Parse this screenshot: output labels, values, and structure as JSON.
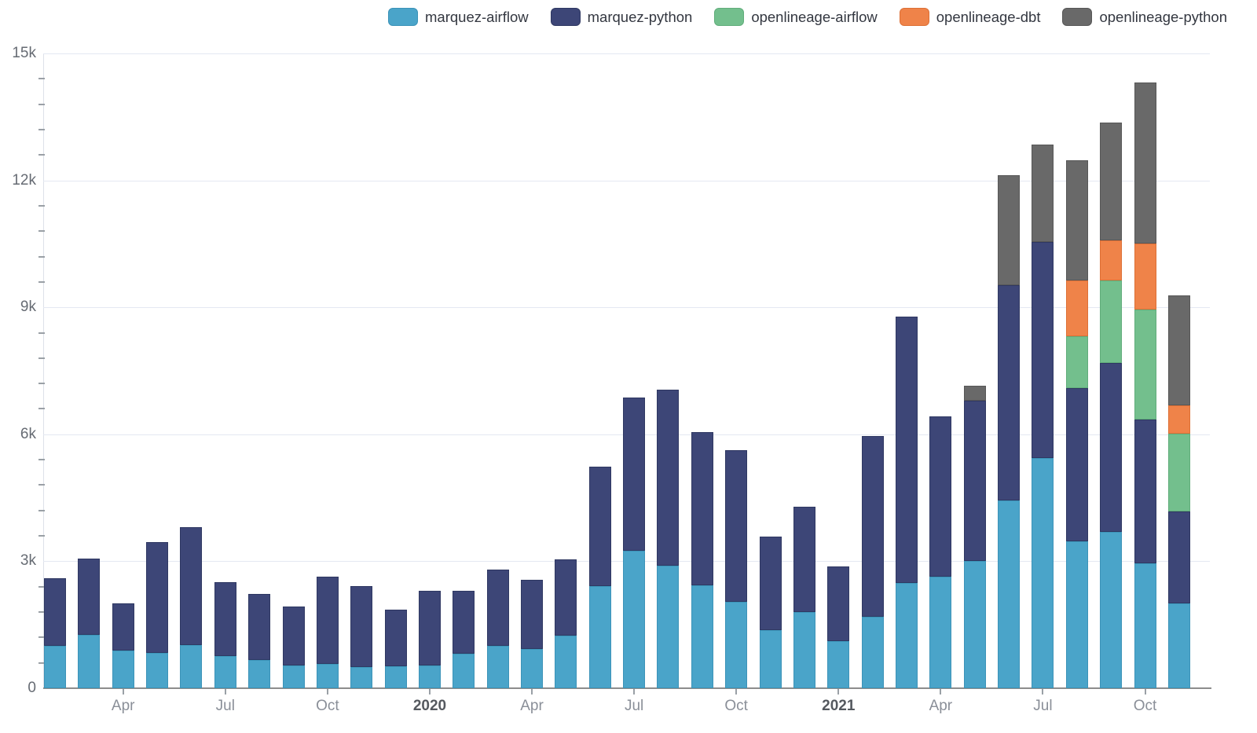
{
  "legend": {
    "items": [
      {
        "label": "marquez-airflow",
        "color": "#4aa4c9",
        "border": "#3c93b8"
      },
      {
        "label": "marquez-python",
        "color": "#3d4677",
        "border": "#2f3862"
      },
      {
        "label": "openlineage-airflow",
        "color": "#73bf8d",
        "border": "#61ad7b"
      },
      {
        "label": "openlineage-dbt",
        "color": "#ef8349",
        "border": "#dd7036"
      },
      {
        "label": "openlineage-python",
        "color": "#696969",
        "border": "#575757"
      }
    ]
  },
  "chart_data": {
    "type": "bar",
    "stacked": true,
    "title": "",
    "xlabel": "",
    "ylabel": "",
    "ylim": [
      0,
      15000
    ],
    "grid": "horizontal",
    "legend_position": "top-right",
    "x": [
      "2019-02",
      "2019-03",
      "2019-04",
      "2019-05",
      "2019-06",
      "2019-07",
      "2019-08",
      "2019-09",
      "2019-10",
      "2019-11",
      "2019-12",
      "2020-01",
      "2020-02",
      "2020-03",
      "2020-04",
      "2020-05",
      "2020-06",
      "2020-07",
      "2020-08",
      "2020-09",
      "2020-10",
      "2020-11",
      "2020-12",
      "2021-01",
      "2021-02",
      "2021-03",
      "2021-04",
      "2021-05",
      "2021-06",
      "2021-07",
      "2021-08",
      "2021-09",
      "2021-10",
      "2021-11"
    ],
    "series": [
      {
        "name": "marquez-airflow",
        "color": "#4aa4c9",
        "border": "#3c93b8",
        "values": [
          1000,
          1270,
          900,
          830,
          1020,
          760,
          660,
          530,
          580,
          510,
          520,
          530,
          810,
          1000,
          930,
          1240,
          2420,
          3240,
          2890,
          2430,
          2040,
          1370,
          1800,
          1110,
          1690,
          2480,
          2630,
          3000,
          4440,
          5440,
          3480,
          3700,
          2960,
          2000
        ]
      },
      {
        "name": "marquez-python",
        "color": "#3d4677",
        "border": "#2f3862",
        "values": [
          1600,
          1800,
          1100,
          2630,
          2780,
          1740,
          1560,
          1410,
          2050,
          1910,
          1340,
          1770,
          1500,
          1800,
          1630,
          1800,
          2810,
          3630,
          4170,
          3630,
          3590,
          2220,
          2480,
          1760,
          4270,
          6300,
          3800,
          3800,
          5080,
          5100,
          3610,
          3980,
          3390,
          2170
        ]
      },
      {
        "name": "openlineage-airflow",
        "color": "#73bf8d",
        "border": "#61ad7b",
        "values": [
          0,
          0,
          0,
          0,
          0,
          0,
          0,
          0,
          0,
          0,
          0,
          0,
          0,
          0,
          0,
          0,
          0,
          0,
          0,
          0,
          0,
          0,
          0,
          0,
          0,
          0,
          0,
          0,
          0,
          0,
          1220,
          1950,
          2590,
          1850
        ]
      },
      {
        "name": "openlineage-dbt",
        "color": "#ef8349",
        "border": "#dd7036",
        "values": [
          0,
          0,
          0,
          0,
          0,
          0,
          0,
          0,
          0,
          0,
          0,
          0,
          0,
          0,
          0,
          0,
          0,
          0,
          0,
          0,
          0,
          0,
          0,
          0,
          0,
          0,
          0,
          0,
          0,
          0,
          1320,
          960,
          1560,
          670
        ]
      },
      {
        "name": "openlineage-python",
        "color": "#696969",
        "border": "#575757",
        "values": [
          0,
          0,
          0,
          0,
          0,
          0,
          0,
          0,
          0,
          0,
          0,
          0,
          0,
          0,
          0,
          0,
          0,
          0,
          0,
          0,
          0,
          0,
          0,
          0,
          0,
          0,
          0,
          350,
          2600,
          2310,
          2850,
          2780,
          3810,
          2600
        ]
      }
    ],
    "yticks": [
      {
        "value": 0,
        "label": "0"
      },
      {
        "value": 3000,
        "label": "3k"
      },
      {
        "value": 6000,
        "label": "6k"
      },
      {
        "value": 9000,
        "label": "9k"
      },
      {
        "value": 12000,
        "label": "12k"
      },
      {
        "value": 15000,
        "label": "15k"
      }
    ],
    "y_minor_step": 600,
    "xticks": [
      {
        "index": 2,
        "label": "Apr",
        "bold": false
      },
      {
        "index": 5,
        "label": "Jul",
        "bold": false
      },
      {
        "index": 8,
        "label": "Oct",
        "bold": false
      },
      {
        "index": 11,
        "label": "2020",
        "bold": true
      },
      {
        "index": 14,
        "label": "Apr",
        "bold": false
      },
      {
        "index": 17,
        "label": "Jul",
        "bold": false
      },
      {
        "index": 20,
        "label": "Oct",
        "bold": false
      },
      {
        "index": 23,
        "label": "2021",
        "bold": true
      },
      {
        "index": 26,
        "label": "Apr",
        "bold": false
      },
      {
        "index": 29,
        "label": "Jul",
        "bold": false
      },
      {
        "index": 32,
        "label": "Oct",
        "bold": false
      }
    ]
  }
}
